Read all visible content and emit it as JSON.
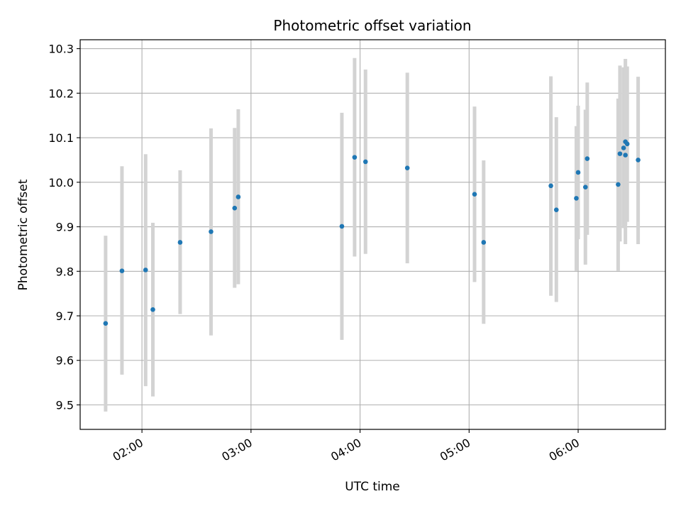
{
  "chart_data": {
    "type": "scatter",
    "title": "Photometric offset variation",
    "xlabel": "UTC time",
    "ylabel": "Photometric offset",
    "grid": true,
    "x_unit": "UTC clock time (hh:mm)",
    "xlim": [
      "01:26",
      "06:48"
    ],
    "ylim": [
      9.445,
      10.32
    ],
    "x_ticks": [
      "02:00",
      "03:00",
      "04:00",
      "05:00",
      "06:00"
    ],
    "y_ticks": [
      "9.5",
      "9.6",
      "9.7",
      "9.8",
      "9.9",
      "10.0",
      "10.1",
      "10.2",
      "10.3"
    ],
    "colors": {
      "points": "#1f77b4",
      "error_bars": "#d3d3d3",
      "grid": "#b0b0b0"
    },
    "points": [
      {
        "x": "01:40",
        "y": 9.683,
        "y_low": 9.485,
        "y_high": 9.88
      },
      {
        "x": "01:49",
        "y": 9.801,
        "y_low": 9.568,
        "y_high": 10.036
      },
      {
        "x": "02:02",
        "y": 9.803,
        "y_low": 9.542,
        "y_high": 10.063
      },
      {
        "x": "02:06",
        "y": 9.714,
        "y_low": 9.519,
        "y_high": 9.909
      },
      {
        "x": "02:21",
        "y": 9.865,
        "y_low": 9.704,
        "y_high": 10.027
      },
      {
        "x": "02:38",
        "y": 9.889,
        "y_low": 9.656,
        "y_high": 10.121
      },
      {
        "x": "02:51",
        "y": 9.942,
        "y_low": 9.763,
        "y_high": 10.122
      },
      {
        "x": "02:53",
        "y": 9.967,
        "y_low": 9.771,
        "y_high": 10.164
      },
      {
        "x": "03:50",
        "y": 9.901,
        "y_low": 9.646,
        "y_high": 10.156
      },
      {
        "x": "03:57",
        "y": 10.056,
        "y_low": 9.833,
        "y_high": 10.279
      },
      {
        "x": "04:03",
        "y": 10.046,
        "y_low": 9.839,
        "y_high": 10.253
      },
      {
        "x": "04:26",
        "y": 10.032,
        "y_low": 9.818,
        "y_high": 10.246
      },
      {
        "x": "05:03",
        "y": 9.973,
        "y_low": 9.776,
        "y_high": 10.17
      },
      {
        "x": "05:08",
        "y": 9.865,
        "y_low": 9.682,
        "y_high": 10.049
      },
      {
        "x": "05:45",
        "y": 9.992,
        "y_low": 9.745,
        "y_high": 10.238
      },
      {
        "x": "05:48",
        "y": 9.938,
        "y_low": 9.731,
        "y_high": 10.146
      },
      {
        "x": "05:59",
        "y": 9.964,
        "y_low": 9.801,
        "y_high": 10.126
      },
      {
        "x": "06:00",
        "y": 10.022,
        "y_low": 9.872,
        "y_high": 10.172
      },
      {
        "x": "06:04",
        "y": 9.989,
        "y_low": 9.815,
        "y_high": 10.163
      },
      {
        "x": "06:05",
        "y": 10.053,
        "y_low": 9.882,
        "y_high": 10.224
      },
      {
        "x": "06:22",
        "y": 9.995,
        "y_low": 9.801,
        "y_high": 10.188
      },
      {
        "x": "06:23",
        "y": 10.064,
        "y_low": 9.867,
        "y_high": 10.262
      },
      {
        "x": "06:25",
        "y": 10.077,
        "y_low": 9.897,
        "y_high": 10.258
      },
      {
        "x": "06:26",
        "y": 10.061,
        "y_low": 9.861,
        "y_high": 10.261
      },
      {
        "x": "06:26",
        "y": 10.091,
        "y_low": 9.905,
        "y_high": 10.277
      },
      {
        "x": "06:27",
        "y": 10.086,
        "y_low": 9.911,
        "y_high": 10.26
      },
      {
        "x": "06:33",
        "y": 10.05,
        "y_low": 9.861,
        "y_high": 10.237
      }
    ]
  }
}
